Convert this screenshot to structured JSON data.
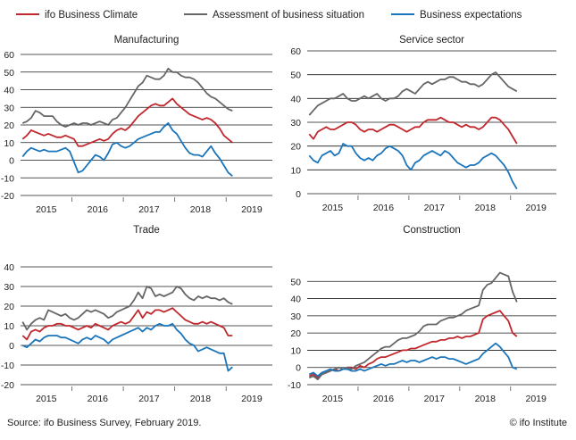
{
  "legend": [
    {
      "label": "ifo Business Climate",
      "color": "#c0282d"
    },
    {
      "label": "Assessment of business situation",
      "color": "#666666"
    },
    {
      "label": "Business expectations",
      "color": "#1a75bb"
    }
  ],
  "source": "Source: ifo Business Survey, February 2019.",
  "copyright": "© ifo Institute",
  "chart_data": [
    {
      "type": "line",
      "title": "Manufacturing",
      "ylim": [
        -20,
        60
      ],
      "yticks": [
        60,
        50,
        40,
        30,
        20,
        10,
        0,
        -10,
        -20
      ],
      "year_labels": [
        "2015",
        "2016",
        "2017",
        "2018",
        "2019"
      ],
      "x_start": 2014.5,
      "x_end": 2019.4,
      "x_step": 0.08333,
      "series": [
        {
          "name": "ifo Business Climate",
          "color": "#c0282d",
          "values": [
            12,
            14,
            17,
            16,
            15,
            14,
            15,
            14,
            13,
            13,
            14,
            13,
            12,
            8,
            8,
            9,
            10,
            11,
            12,
            11,
            12,
            15,
            17,
            18,
            17,
            19,
            22,
            25,
            27,
            29,
            31,
            32,
            31,
            31,
            33,
            35,
            32,
            30,
            28,
            26,
            25,
            24,
            23,
            24,
            23,
            21,
            18,
            14,
            12,
            10
          ]
        },
        {
          "name": "Assessment of business situation",
          "color": "#666666",
          "values": [
            21,
            22,
            24,
            28,
            27,
            25,
            25,
            25,
            22,
            20,
            19,
            20,
            21,
            20,
            21,
            21,
            20,
            21,
            22,
            21,
            20,
            23,
            24,
            27,
            30,
            34,
            38,
            42,
            44,
            48,
            47,
            46,
            46,
            48,
            52,
            50,
            50,
            48,
            47,
            47,
            46,
            44,
            41,
            38,
            36,
            35,
            33,
            31,
            29,
            28
          ]
        },
        {
          "name": "Business expectations",
          "color": "#1a75bb",
          "values": [
            2,
            5,
            7,
            6,
            5,
            6,
            5,
            5,
            5,
            6,
            7,
            5,
            -1,
            -7,
            -6,
            -3,
            0,
            3,
            2,
            0,
            4,
            9,
            10,
            8,
            7,
            8,
            10,
            12,
            13,
            14,
            15,
            16,
            16,
            19,
            21,
            17,
            15,
            11,
            7,
            4,
            3,
            3,
            2,
            5,
            8,
            4,
            1,
            -3,
            -7,
            -9
          ]
        }
      ]
    },
    {
      "type": "line",
      "title": "Service sector",
      "ylim": [
        0,
        60
      ],
      "yticks": [
        60,
        50,
        40,
        30,
        20,
        10,
        0
      ],
      "year_labels": [
        "2015",
        "2016",
        "2017",
        "2018",
        "2019"
      ],
      "x_start": 2014.5,
      "x_end": 2019.4,
      "x_step": 0.08333,
      "series": [
        {
          "name": "ifo Business Climate",
          "color": "#c0282d",
          "values": [
            25,
            23,
            26,
            27,
            28,
            27,
            27,
            28,
            29,
            30,
            30,
            29,
            27,
            26,
            27,
            27,
            26,
            27,
            28,
            29,
            29,
            28,
            27,
            26,
            27,
            28,
            28,
            30,
            31,
            31,
            31,
            32,
            31,
            30,
            30,
            29,
            28,
            29,
            28,
            28,
            27,
            28,
            30,
            32,
            32,
            31,
            29,
            27,
            24,
            21
          ]
        },
        {
          "name": "Assessment of business situation",
          "color": "#666666",
          "values": [
            33,
            35,
            37,
            38,
            39,
            40,
            40,
            41,
            42,
            40,
            39,
            39,
            40,
            41,
            40,
            41,
            42,
            40,
            39,
            40,
            40,
            41,
            43,
            44,
            43,
            42,
            44,
            46,
            47,
            46,
            47,
            48,
            48,
            49,
            49,
            48,
            47,
            47,
            46,
            46,
            45,
            46,
            48,
            50,
            51,
            49,
            47,
            45,
            44,
            43
          ]
        },
        {
          "name": "Business expectations",
          "color": "#1a75bb",
          "values": [
            16,
            14,
            13,
            16,
            17,
            18,
            16,
            17,
            21,
            20,
            20,
            17,
            15,
            14,
            15,
            14,
            16,
            17,
            19,
            20,
            19,
            18,
            16,
            12,
            10,
            13,
            14,
            16,
            17,
            18,
            17,
            16,
            18,
            17,
            15,
            13,
            12,
            11,
            12,
            12,
            13,
            15,
            16,
            17,
            16,
            14,
            12,
            9,
            5,
            2
          ]
        }
      ]
    },
    {
      "type": "line",
      "title": "Trade",
      "ylim": [
        -20,
        40
      ],
      "yticks": [
        40,
        30,
        20,
        10,
        0,
        -10,
        -20
      ],
      "year_labels": [
        "2015",
        "2016",
        "2017",
        "2018",
        "2019"
      ],
      "x_start": 2014.5,
      "x_end": 2019.4,
      "x_step": 0.08333,
      "series": [
        {
          "name": "ifo Business Climate",
          "color": "#c0282d",
          "values": [
            5,
            3,
            7,
            8,
            7,
            9,
            10,
            10,
            11,
            11,
            10,
            10,
            9,
            8,
            9,
            10,
            9,
            11,
            10,
            9,
            8,
            10,
            11,
            12,
            11,
            12,
            15,
            18,
            14,
            17,
            16,
            18,
            18,
            17,
            18,
            19,
            17,
            15,
            13,
            12,
            11,
            11,
            12,
            11,
            12,
            11,
            10,
            9,
            5,
            5
          ]
        },
        {
          "name": "Assessment of business situation",
          "color": "#666666",
          "values": [
            12,
            8,
            11,
            13,
            14,
            13,
            18,
            17,
            16,
            15,
            16,
            14,
            13,
            14,
            16,
            18,
            17,
            18,
            17,
            16,
            14,
            15,
            17,
            18,
            19,
            20,
            23,
            27,
            24,
            30,
            29,
            25,
            26,
            25,
            26,
            27,
            30,
            29,
            26,
            24,
            23,
            25,
            24,
            25,
            24,
            24,
            23,
            24,
            22,
            21
          ]
        },
        {
          "name": "Business expectations",
          "color": "#1a75bb",
          "values": [
            0,
            -1,
            1,
            3,
            2,
            4,
            5,
            5,
            5,
            4,
            4,
            3,
            2,
            1,
            3,
            4,
            3,
            5,
            4,
            3,
            1,
            3,
            4,
            5,
            6,
            7,
            8,
            9,
            7,
            9,
            8,
            10,
            11,
            10,
            10,
            11,
            8,
            6,
            3,
            1,
            0,
            -3,
            -2,
            -1,
            -2,
            -3,
            -4,
            -4,
            -13,
            -11
          ]
        }
      ]
    },
    {
      "type": "line",
      "title": "Construction",
      "ylim": [
        -10,
        60
      ],
      "yticks": [
        50,
        40,
        30,
        20,
        10,
        0,
        -10
      ],
      "year_labels": [
        "2015",
        "2016",
        "2017",
        "2018",
        "2019"
      ],
      "x_start": 2014.5,
      "x_end": 2019.4,
      "x_step": 0.08333,
      "series": [
        {
          "name": "ifo Business Climate",
          "color": "#c0282d",
          "values": [
            -5,
            -4,
            -6,
            -4,
            -3,
            -2,
            -1,
            -2,
            -1,
            0,
            0,
            -1,
            1,
            0,
            2,
            3,
            5,
            6,
            6,
            7,
            8,
            9,
            10,
            10,
            11,
            11,
            12,
            13,
            14,
            15,
            15,
            16,
            16,
            17,
            17,
            18,
            17,
            18,
            18,
            19,
            20,
            28,
            30,
            31,
            32,
            33,
            30,
            27,
            20,
            18
          ]
        },
        {
          "name": "Assessment of business situation",
          "color": "#666666",
          "values": [
            -6,
            -5,
            -7,
            -4,
            -3,
            -2,
            -1,
            0,
            -1,
            0,
            -1,
            1,
            2,
            3,
            5,
            7,
            9,
            11,
            12,
            12,
            14,
            16,
            17,
            17,
            18,
            19,
            21,
            24,
            25,
            25,
            25,
            27,
            28,
            29,
            29,
            30,
            31,
            33,
            34,
            35,
            36,
            45,
            48,
            49,
            52,
            55,
            54,
            53,
            44,
            38
          ]
        },
        {
          "name": "Business expectations",
          "color": "#1a75bb",
          "values": [
            -4,
            -3,
            -5,
            -3,
            -2,
            -1,
            -2,
            -2,
            -1,
            -1,
            -2,
            -2,
            -1,
            -2,
            -1,
            0,
            1,
            2,
            1,
            2,
            2,
            3,
            4,
            3,
            4,
            4,
            3,
            4,
            5,
            6,
            5,
            6,
            6,
            5,
            5,
            4,
            3,
            2,
            3,
            4,
            5,
            8,
            10,
            12,
            14,
            12,
            9,
            6,
            0,
            -1
          ]
        }
      ]
    }
  ]
}
